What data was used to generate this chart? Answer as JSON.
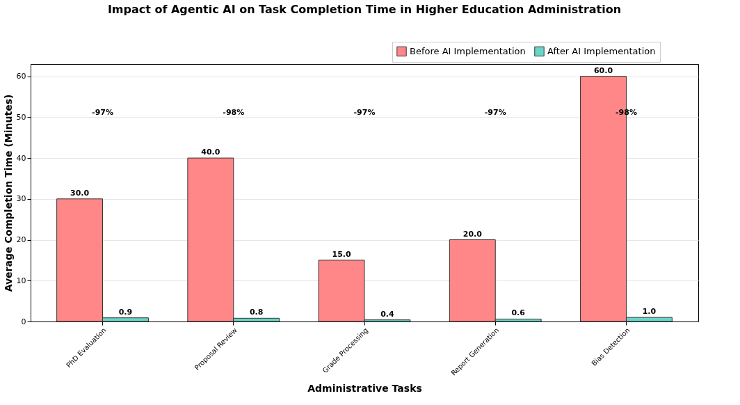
{
  "chart_data": {
    "type": "bar",
    "title": "Impact of Agentic AI on Task Completion Time in Higher Education Administration",
    "xlabel": "Administrative Tasks",
    "ylabel": "Average Completion Time (Minutes)",
    "categories": [
      "PhD Evaluation",
      "Proposal Review",
      "Grade Processing",
      "Report Generation",
      "Bias Detection"
    ],
    "series": [
      {
        "name": "Before AI Implementation",
        "color": "#ff8787",
        "values": [
          30,
          40,
          15,
          20,
          60
        ],
        "value_labels": [
          "30.0",
          "40.0",
          "15.0",
          "20.0",
          "60.0"
        ]
      },
      {
        "name": "After AI Implementation",
        "color": "#6bd4c8",
        "values": [
          0.9,
          0.8,
          0.4,
          0.6,
          1.0
        ],
        "value_labels": [
          "0.9",
          "0.8",
          "0.4",
          "0.6",
          "1.0"
        ]
      }
    ],
    "annotations": [
      "-97%",
      "-98%",
      "-97%",
      "-97%",
      "-98%"
    ],
    "ylim": [
      0,
      63
    ],
    "yticks": [
      0,
      10,
      20,
      30,
      40,
      50,
      60
    ],
    "grid": "y",
    "legend": "top right"
  }
}
